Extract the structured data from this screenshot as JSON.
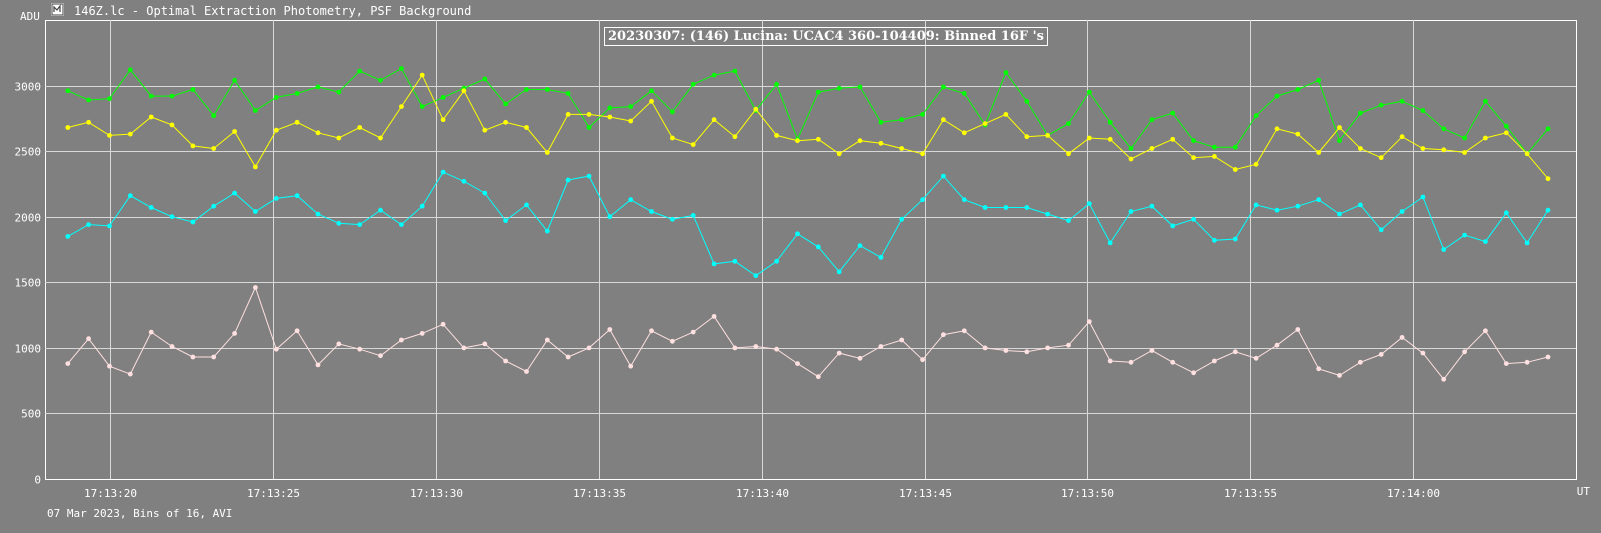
{
  "window": {
    "title": "146Z.lc - Optimal Extraction Photometry, PSF Background",
    "icon": "app-icon"
  },
  "footer": "07 Mar 2023, Bins of 16, AVI",
  "chart_data": {
    "type": "line",
    "title": "20230307: (146) Lucina: UCAC4 360-104409: Binned 16F 's",
    "xlabel": "UT",
    "ylabel": "ADU",
    "x_ticks": [
      "17:13:20",
      "17:13:25",
      "17:13:30",
      "17:13:35",
      "17:13:40",
      "17:13:45",
      "17:13:50",
      "17:13:55",
      "17:14:00"
    ],
    "y_ticks": [
      0,
      500,
      1000,
      1500,
      2000,
      2500,
      3000
    ],
    "ylim": [
      0,
      3500
    ],
    "x_range_seconds_after_17_13_00": [
      18.0,
      65.0
    ],
    "grid": true,
    "x_start": "17:13:18.7",
    "x_step_seconds": 0.64,
    "series": [
      {
        "name": "",
        "color": "#00ff00",
        "values": [
          2960,
          2890,
          2900,
          3120,
          2920,
          2920,
          2970,
          2770,
          3040,
          2810,
          2910,
          2940,
          2990,
          2950,
          3110,
          3040,
          3130,
          2840,
          2910,
          2980,
          3050,
          2860,
          2970,
          2970,
          2940,
          2680,
          2830,
          2840,
          2960,
          2800,
          3010,
          3080,
          3110,
          2810,
          3010,
          2590,
          2950,
          2980,
          2990,
          2720,
          2740,
          2780,
          2990,
          2940,
          2700,
          3100,
          2880,
          2620,
          2710,
          2950,
          2720,
          2520,
          2740,
          2790,
          2580,
          2530,
          2530,
          2770,
          2920,
          2970,
          3040,
          2580,
          2790,
          2850,
          2880,
          2810,
          2670,
          2600,
          2880,
          2690,
          2480,
          2670
        ]
      },
      {
        "name": "",
        "color": "#ffff00",
        "values": [
          2680,
          2720,
          2620,
          2630,
          2760,
          2700,
          2540,
          2520,
          2650,
          2380,
          2660,
          2720,
          2640,
          2600,
          2680,
          2600,
          2840,
          3080,
          2740,
          2960,
          2660,
          2720,
          2680,
          2490,
          2780,
          2780,
          2760,
          2730,
          2880,
          2600,
          2550,
          2740,
          2610,
          2820,
          2620,
          2580,
          2590,
          2480,
          2580,
          2560,
          2520,
          2480,
          2740,
          2640,
          2710,
          2780,
          2610,
          2620,
          2480,
          2600,
          2590,
          2440,
          2520,
          2590,
          2450,
          2460,
          2360,
          2400,
          2670,
          2630,
          2490,
          2680,
          2520,
          2450,
          2610,
          2520,
          2510,
          2490,
          2600,
          2640,
          2480,
          2290
        ]
      },
      {
        "name": "",
        "color": "#00ffff",
        "values": [
          1850,
          1940,
          1930,
          2160,
          2070,
          2000,
          1960,
          2080,
          2180,
          2040,
          2140,
          2160,
          2020,
          1950,
          1940,
          2050,
          1940,
          2080,
          2340,
          2270,
          2180,
          1970,
          2090,
          1890,
          2280,
          2310,
          2000,
          2130,
          2040,
          1980,
          2010,
          1640,
          1660,
          1550,
          1660,
          1870,
          1770,
          1580,
          1780,
          1690,
          1980,
          2130,
          2310,
          2130,
          2070,
          2070,
          2070,
          2020,
          1970,
          2100,
          1800,
          2040,
          2080,
          1930,
          1980,
          1820,
          1830,
          2090,
          2050,
          2080,
          2130,
          2020,
          2090,
          1900,
          2040,
          2150,
          1750,
          1860,
          1810,
          2030,
          1800,
          2050
        ]
      },
      {
        "name": "",
        "color": "#ffe0e0",
        "values": [
          880,
          1070,
          860,
          800,
          1120,
          1010,
          930,
          930,
          1110,
          1460,
          990,
          1130,
          870,
          1030,
          990,
          940,
          1060,
          1110,
          1180,
          1000,
          1030,
          900,
          820,
          1060,
          930,
          1000,
          1140,
          860,
          1130,
          1050,
          1120,
          1240,
          1000,
          1010,
          990,
          880,
          780,
          960,
          920,
          1010,
          1060,
          910,
          1100,
          1130,
          1000,
          980,
          970,
          1000,
          1020,
          1200,
          900,
          890,
          980,
          890,
          810,
          900,
          970,
          920,
          1020,
          1140,
          840,
          790,
          890,
          950,
          1080,
          960,
          760,
          970,
          1130,
          880,
          890,
          930
        ]
      }
    ]
  }
}
